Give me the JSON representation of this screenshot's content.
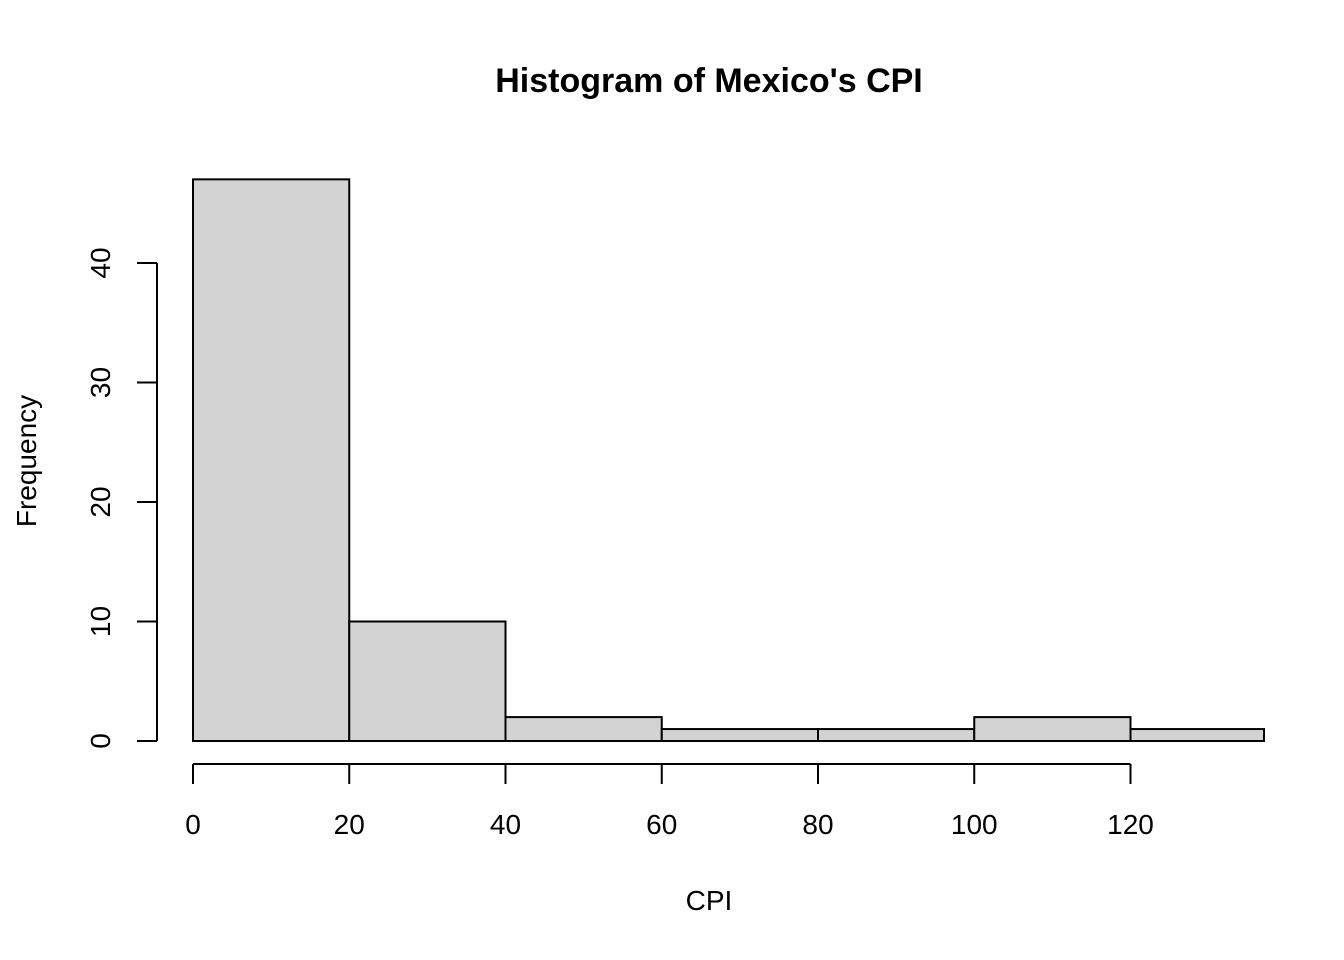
{
  "chart_data": {
    "type": "histogram",
    "title": "Histogram of Mexico's CPI",
    "xlabel": "CPI",
    "ylabel": "Frequency",
    "bins": [
      {
        "x0": 0,
        "x1": 20,
        "count": 47
      },
      {
        "x0": 20,
        "x1": 40,
        "count": 10
      },
      {
        "x0": 40,
        "x1": 60,
        "count": 2
      },
      {
        "x0": 60,
        "x1": 80,
        "count": 1
      },
      {
        "x0": 80,
        "x1": 100,
        "count": 1
      },
      {
        "x0": 100,
        "x1": 120,
        "count": 2
      },
      {
        "x0": 120,
        "x1": 140,
        "count": 1
      }
    ],
    "x_ticks": [
      0,
      20,
      40,
      60,
      80,
      100,
      120
    ],
    "y_ticks": [
      0,
      10,
      20,
      30,
      40
    ],
    "grid": false
  }
}
